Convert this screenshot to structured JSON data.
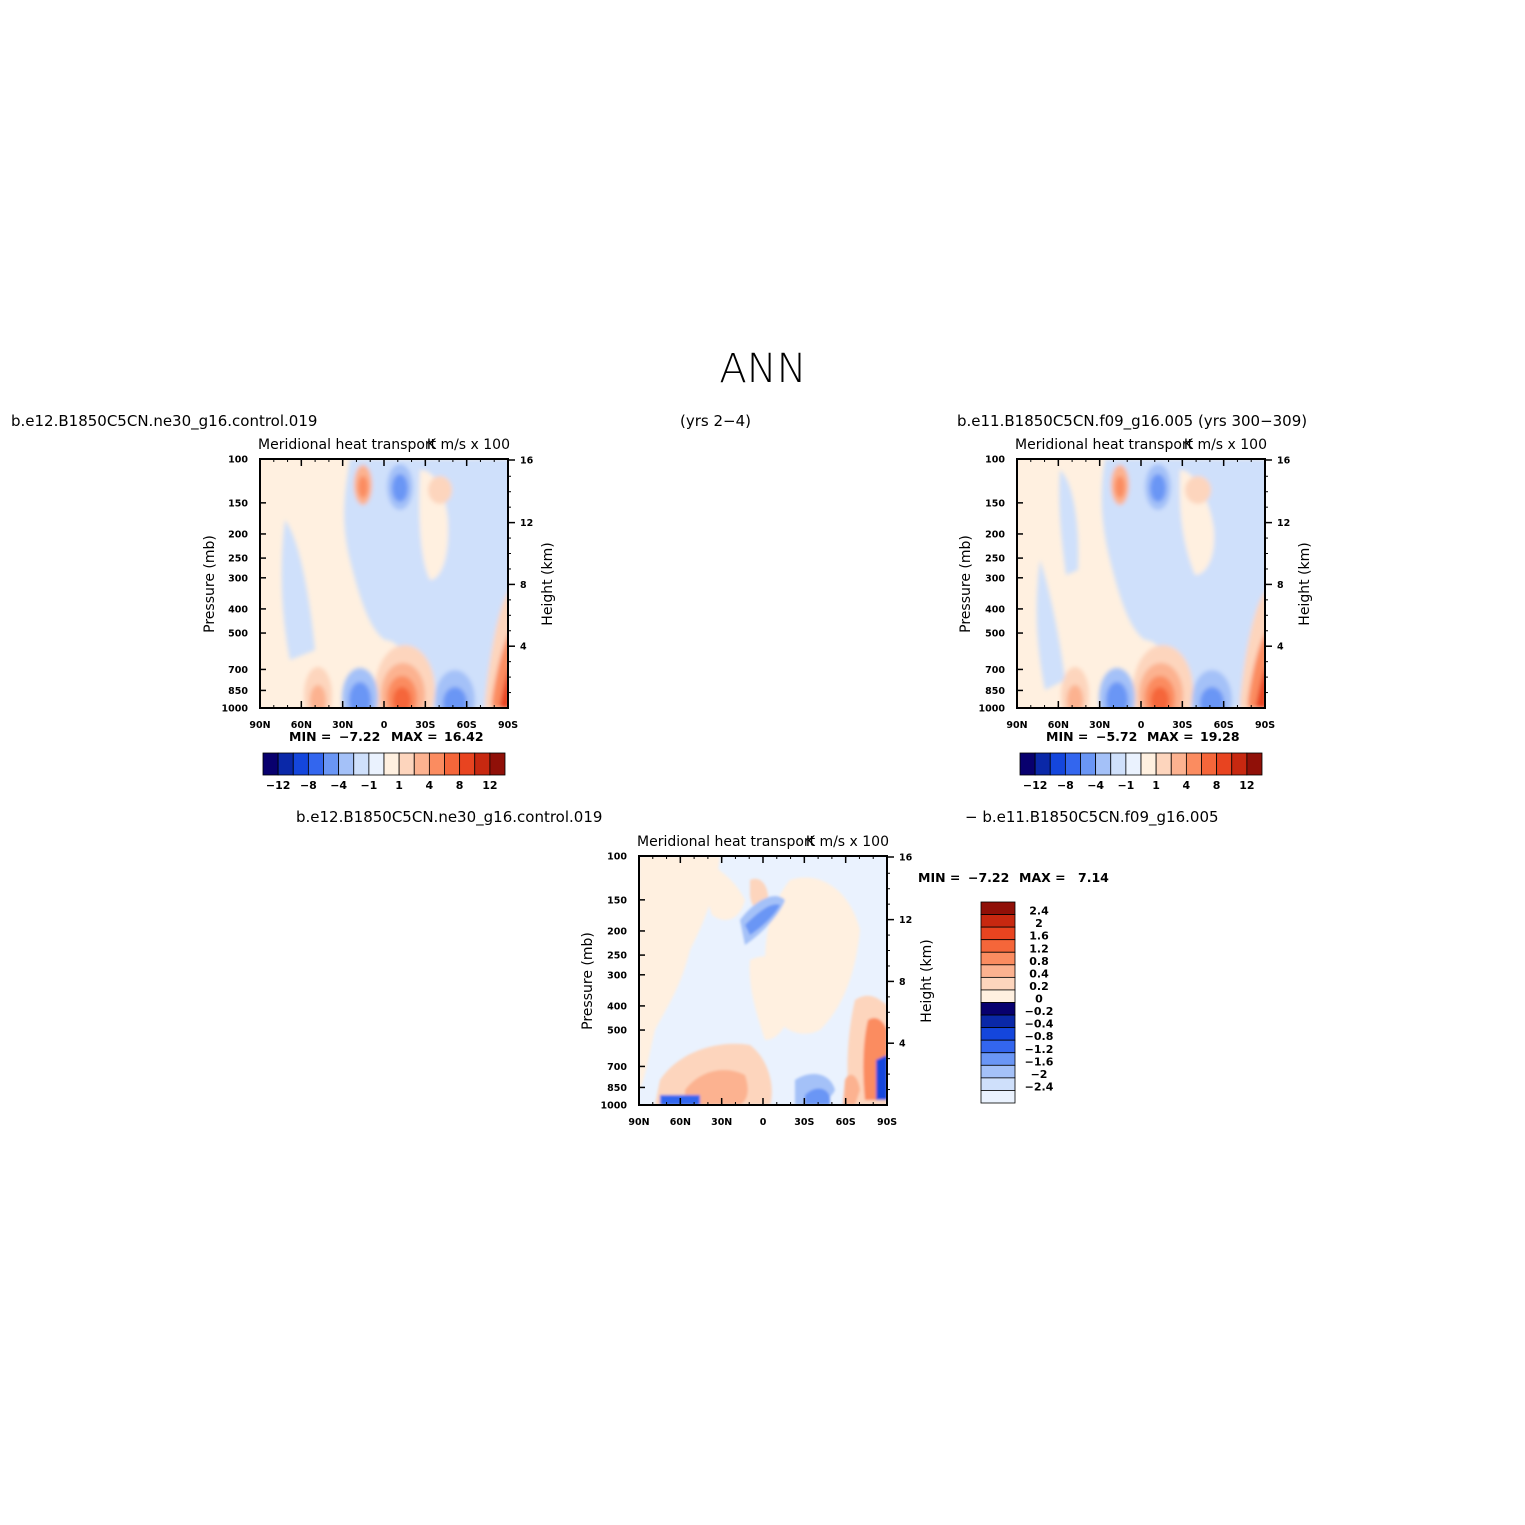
{
  "page": {
    "title": "ANN",
    "case1_label": "b.e12.B1850C5CN.ne30_g16.control.019",
    "case1_years": "(yrs 2−4)",
    "case2_label": "b.e11.B1850C5CN.f09_g16.005 (yrs 300−309)",
    "diff_label_left": "b.e12.B1850C5CN.ne30_g16.control.019",
    "diff_label_right": "−  b.e11.B1850C5CN.f09_g16.005"
  },
  "palette": {
    "neg": [
      "#08006e",
      "#0a28a8",
      "#1446dc",
      "#3366ee",
      "#6a96f5",
      "#a4c1f8",
      "#cfe0fb",
      "#eaf2fe"
    ],
    "pos": [
      "#fff0e0",
      "#fdd5bd",
      "#fcb290",
      "#fb8c60",
      "#f5663a",
      "#e84420",
      "#c72810",
      "#901008"
    ]
  },
  "chart_data": [
    {
      "type": "heatmap",
      "id": "case1",
      "title": "Meridional heat transport",
      "units": "K m/s x 100",
      "ylabel": "Pressure (mb)",
      "ylabel_right": "Height (km)",
      "xticks": [
        "90N",
        "60N",
        "30N",
        "0",
        "30S",
        "60S",
        "90S"
      ],
      "yticks": [
        100,
        150,
        200,
        250,
        300,
        400,
        500,
        700,
        850,
        1000
      ],
      "yticks_right": [
        16,
        12,
        8,
        4
      ],
      "ylim": [
        1000,
        100
      ],
      "log_y": true,
      "min_label": "MIN =",
      "min": "−7.22",
      "max_label": "MAX =",
      "max": "16.42",
      "levels": [
        -12,
        -8,
        -4,
        -1,
        1,
        4,
        8,
        12
      ],
      "colorbar_labels": [
        "−12",
        "−8",
        "−4",
        "−1",
        "1",
        "4",
        "8",
        "12"
      ]
    },
    {
      "type": "heatmap",
      "id": "case2",
      "title": "Meridional heat transport",
      "units": "K m/s x 100",
      "ylabel": "Pressure (mb)",
      "ylabel_right": "Height (km)",
      "xticks": [
        "90N",
        "60N",
        "30N",
        "0",
        "30S",
        "60S",
        "90S"
      ],
      "yticks": [
        100,
        150,
        200,
        250,
        300,
        400,
        500,
        700,
        850,
        1000
      ],
      "yticks_right": [
        16,
        12,
        8,
        4
      ],
      "ylim": [
        1000,
        100
      ],
      "log_y": true,
      "min_label": "MIN =",
      "min": "−5.72",
      "max_label": "MAX =",
      "max": "19.28",
      "levels": [
        -12,
        -8,
        -4,
        -1,
        1,
        4,
        8,
        12
      ],
      "colorbar_labels": [
        "−12",
        "−8",
        "−4",
        "−1",
        "1",
        "4",
        "8",
        "12"
      ]
    },
    {
      "type": "heatmap",
      "id": "difference",
      "title": "Meridional heat transport",
      "units": "K m/s x 100",
      "ylabel": "Pressure (mb)",
      "ylabel_right": "Height (km)",
      "xticks": [
        "90N",
        "60N",
        "30N",
        "0",
        "30S",
        "60S",
        "90S"
      ],
      "yticks": [
        100,
        150,
        200,
        250,
        300,
        400,
        500,
        700,
        850,
        1000
      ],
      "yticks_right": [
        16,
        12,
        8,
        4
      ],
      "ylim": [
        1000,
        100
      ],
      "log_y": true,
      "min_label": "MIN =",
      "min": "−7.22",
      "max_label": "MAX =",
      "max": "7.14",
      "levels": [
        2.4,
        2,
        1.6,
        1.2,
        0.8,
        0.4,
        0.2,
        0,
        -0.2,
        -0.4,
        -0.8,
        -1.2,
        -1.6,
        -2,
        -2.4
      ],
      "colorbar_labels": [
        "2.4",
        "2",
        "1.6",
        "1.2",
        "0.8",
        "0.4",
        "0.2",
        "0",
        "−0.2",
        "−0.4",
        "−0.8",
        "−1.2",
        "−1.6",
        "−2",
        "−2.4"
      ]
    }
  ]
}
